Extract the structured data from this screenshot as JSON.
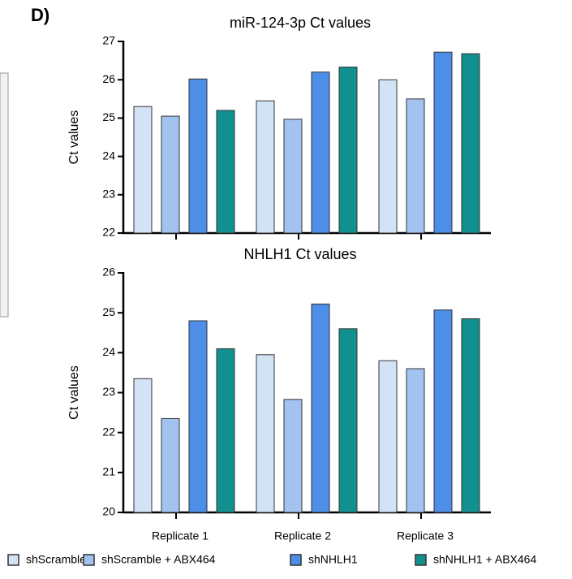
{
  "panel_label": "D)",
  "chart_data": [
    {
      "type": "bar",
      "title": "miR-124-3p Ct values",
      "ylabel": "Ct values",
      "categories": [
        null,
        null,
        null
      ],
      "series": [
        {
          "color": "#d3e3f6",
          "values": [
            25.3,
            25.45,
            26.0
          ]
        },
        {
          "color": "#a2c3ef",
          "values": [
            25.05,
            24.97,
            25.5
          ]
        },
        {
          "color": "#4d8ee8",
          "values": [
            26.02,
            26.2,
            26.72
          ]
        },
        {
          "color": "#12908f",
          "values": [
            25.2,
            26.33,
            26.68
          ]
        }
      ],
      "ylim": [
        22,
        27
      ],
      "yticks": [
        22,
        23,
        24,
        25,
        26,
        27
      ]
    },
    {
      "type": "bar",
      "title": "NHLH1 Ct values",
      "ylabel": "Ct values",
      "categories": [
        "Replicate 1",
        "Replicate 2",
        "Replicate 3"
      ],
      "series": [
        {
          "name": "shScramble",
          "color": "#d3e3f6",
          "values": [
            23.35,
            23.95,
            23.8
          ]
        },
        {
          "name": "shScramble + ABX464",
          "color": "#a2c3ef",
          "values": [
            22.35,
            22.83,
            23.6
          ]
        },
        {
          "name": "shNHLH1",
          "color": "#4d8ee8",
          "values": [
            24.8,
            25.22,
            25.07
          ]
        },
        {
          "name": "shNHLH1 + ABX464",
          "color": "#12908f",
          "values": [
            24.1,
            24.6,
            24.85
          ]
        }
      ],
      "ylim": [
        20,
        26
      ],
      "yticks": [
        20,
        21,
        22,
        23,
        24,
        25,
        26
      ]
    }
  ]
}
